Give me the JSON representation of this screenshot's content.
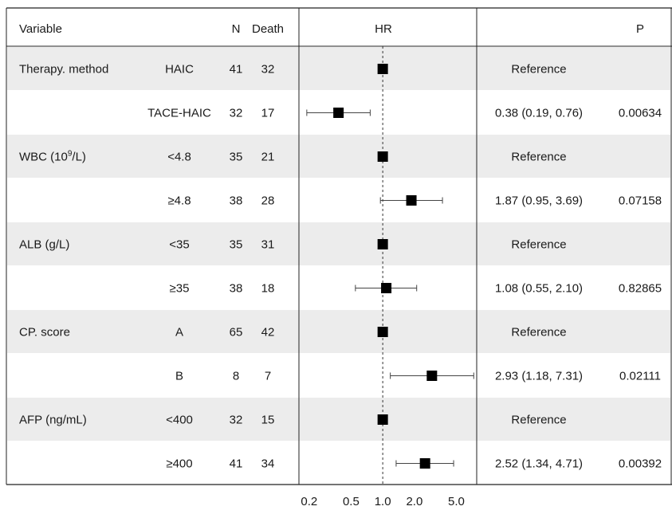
{
  "header": {
    "variable": "Variable",
    "n": "N",
    "death": "Death",
    "hr": "HR",
    "ci": "",
    "p": "P"
  },
  "rows": [
    {
      "variable": "Therapy. method",
      "level": "HAIC",
      "n": "41",
      "death": "32",
      "ci_text": "Reference",
      "p": "",
      "shaded": true
    },
    {
      "variable": "",
      "level": "TACE-HAIC",
      "n": "32",
      "death": "17",
      "ci_text": "0.38 (0.19, 0.76)",
      "p": "0.00634",
      "shaded": false
    },
    {
      "variable": "WBC (10",
      "variable_sup": "9",
      "variable_tail": "/L)",
      "level": "<4.8",
      "n": "35",
      "death": "21",
      "ci_text": "Reference",
      "p": "",
      "shaded": true
    },
    {
      "variable": "",
      "level": "≥4.8",
      "n": "38",
      "death": "28",
      "ci_text": "1.87 (0.95, 3.69)",
      "p": "0.07158",
      "shaded": false
    },
    {
      "variable": "ALB (g/L)",
      "level": "<35",
      "n": "35",
      "death": "31",
      "ci_text": "Reference",
      "p": "",
      "shaded": true
    },
    {
      "variable": "",
      "level": "≥35",
      "n": "38",
      "death": "18",
      "ci_text": "1.08 (0.55, 2.10)",
      "p": "0.82865",
      "shaded": false
    },
    {
      "variable": "CP. score",
      "level": "A",
      "n": "65",
      "death": "42",
      "ci_text": "Reference",
      "p": "",
      "shaded": true
    },
    {
      "variable": "",
      "level": "B",
      "n": "8",
      "death": "7",
      "ci_text": "2.93 (1.18, 7.31)",
      "p": "0.02111",
      "shaded": false
    },
    {
      "variable": "AFP (ng/mL)",
      "level": "<400",
      "n": "32",
      "death": "15",
      "ci_text": "Reference",
      "p": "",
      "shaded": true
    },
    {
      "variable": "",
      "level": "≥400",
      "n": "41",
      "death": "34",
      "ci_text": "2.52 (1.34, 4.71)",
      "p": "0.00392",
      "shaded": false
    }
  ],
  "chart_data": {
    "type": "forest",
    "x_scale": "log",
    "xlim": [
      0.16,
      7.8
    ],
    "reference_line": 1.0,
    "x_ticks": [
      0.2,
      0.5,
      1.0,
      2.0,
      5.0
    ],
    "x_tick_labels": [
      "0.2",
      "0.5",
      "1.0",
      "2.0",
      "5.0"
    ],
    "points": [
      {
        "label": "HAIC",
        "hr": 1.0,
        "lower": null,
        "upper": null
      },
      {
        "label": "TACE-HAIC",
        "hr": 0.38,
        "lower": 0.19,
        "upper": 0.76
      },
      {
        "label": "<4.8",
        "hr": 1.0,
        "lower": null,
        "upper": null
      },
      {
        "label": "≥4.8",
        "hr": 1.87,
        "lower": 0.95,
        "upper": 3.69
      },
      {
        "label": "<35",
        "hr": 1.0,
        "lower": null,
        "upper": null
      },
      {
        "label": "≥35",
        "hr": 1.08,
        "lower": 0.55,
        "upper": 2.1
      },
      {
        "label": "A",
        "hr": 1.0,
        "lower": null,
        "upper": null
      },
      {
        "label": "B",
        "hr": 2.93,
        "lower": 1.18,
        "upper": 7.31
      },
      {
        "label": "<400",
        "hr": 1.0,
        "lower": null,
        "upper": null
      },
      {
        "label": "≥400",
        "hr": 2.52,
        "lower": 1.34,
        "upper": 4.71
      }
    ]
  }
}
